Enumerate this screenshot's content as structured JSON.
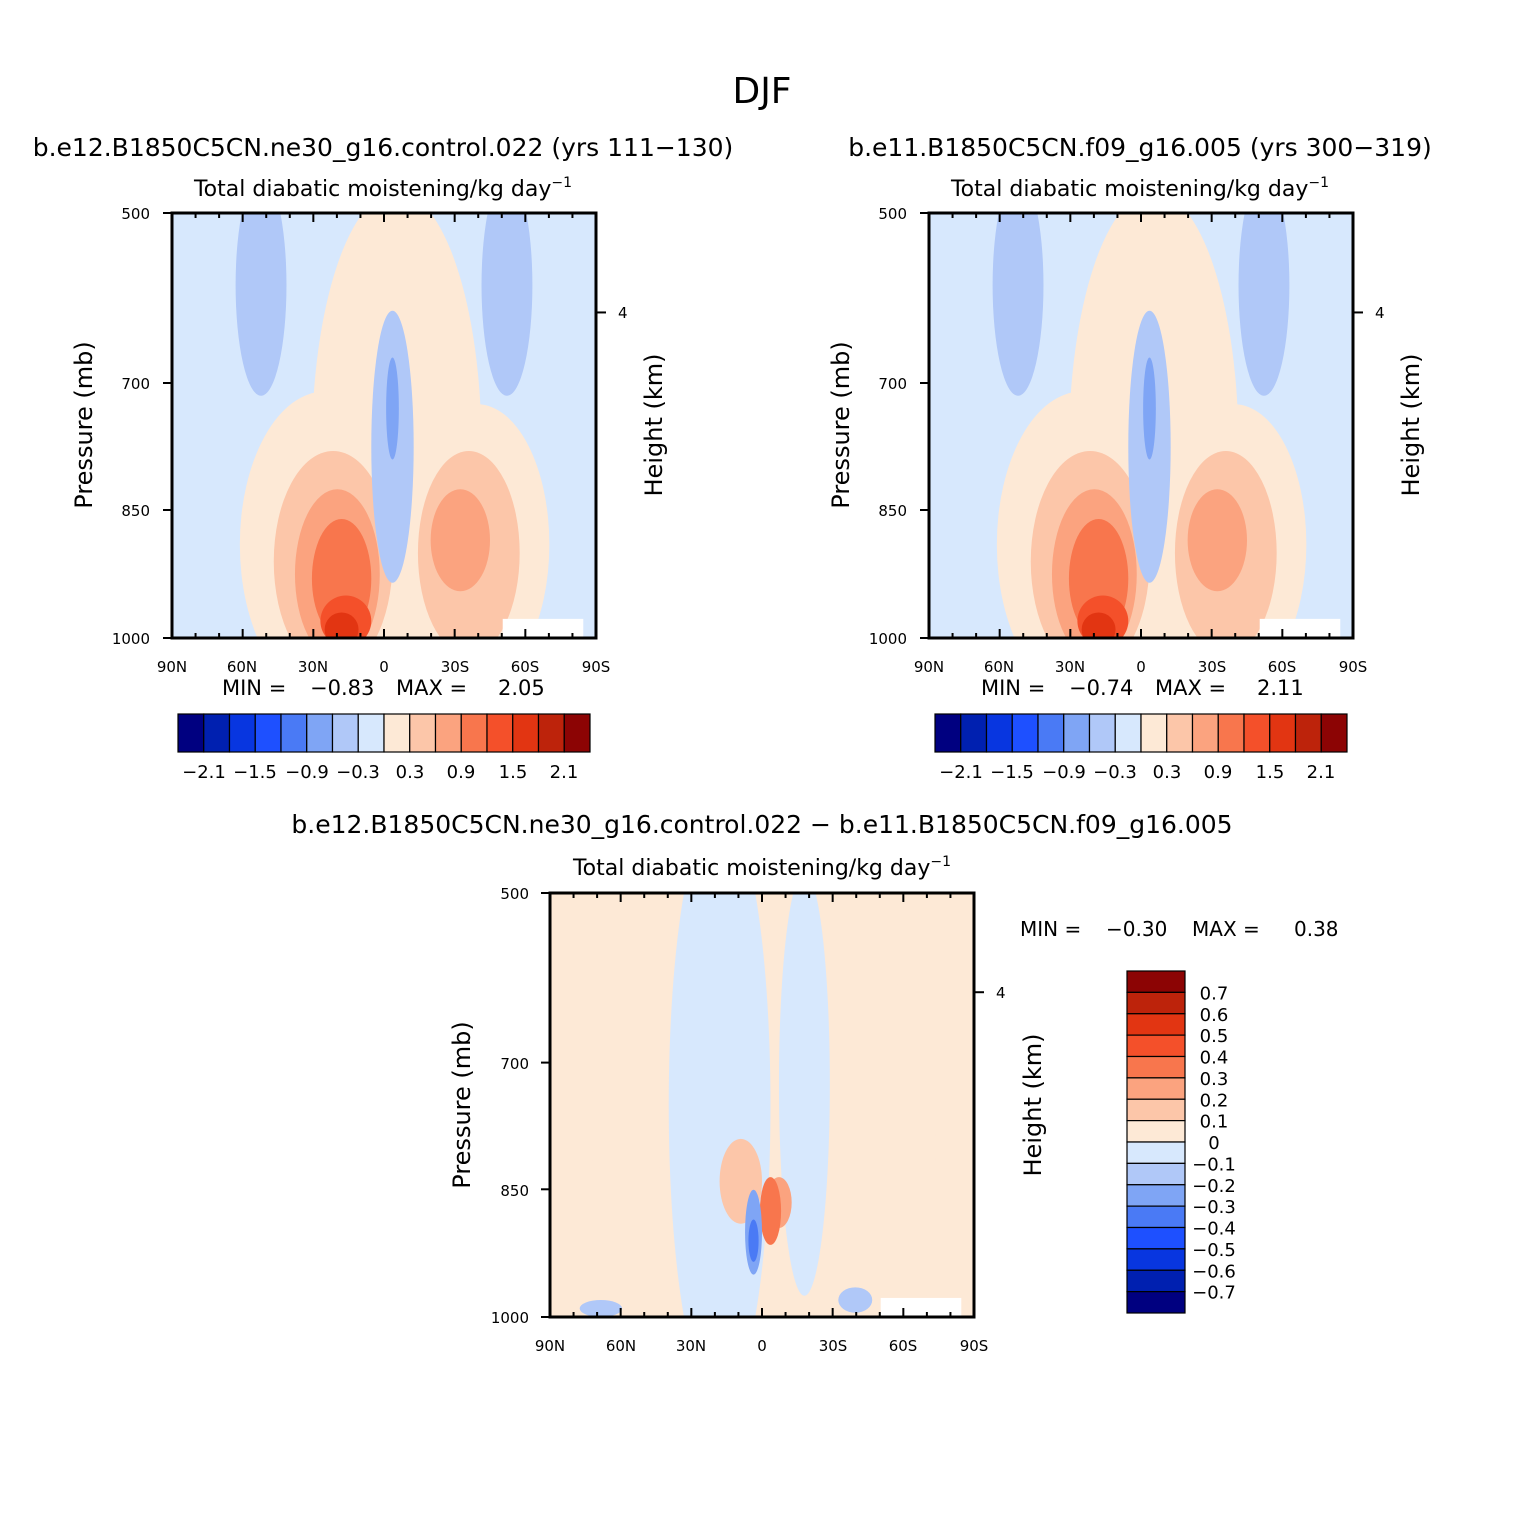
{
  "figure": {
    "title": "DJF"
  },
  "chart_data": [
    {
      "type": "heatmap",
      "title": "b.e12.B1850C5CN.ne30_g16.control.022 (yrs 111−130)",
      "subtitle": "Total diabatic moistening/kg day",
      "subtitle_exp": "−1",
      "ylabel": "Pressure (mb)",
      "ylabel_right": "Height (km)",
      "x_ticks": [
        "90N",
        "60N",
        "30N",
        "0",
        "30S",
        "60S",
        "90S"
      ],
      "y_ticks": [
        "500",
        "700",
        "850",
        "1000"
      ],
      "y_right_ticks": [
        "4"
      ],
      "ylim": [
        1000,
        500
      ],
      "stats": {
        "min_label": "MIN =",
        "min": "−0.83",
        "max_label": "MAX =",
        "max": "2.05"
      },
      "colorbar": {
        "orientation": "horizontal",
        "colors": [
          "#000080",
          "#0020b0",
          "#0836e0",
          "#1e50ff",
          "#4a7af5",
          "#7fa5f5",
          "#b0c8f8",
          "#d7e8fd",
          "#fde9d6",
          "#fcc6a9",
          "#fba37f",
          "#f8764d",
          "#f4502a",
          "#e23512",
          "#bd230b",
          "#8c0404"
        ],
        "labels": [
          "−2.1",
          "−1.5",
          "−0.9",
          "−0.3",
          "0.3",
          "0.9",
          "1.5",
          "2.1"
        ]
      }
    },
    {
      "type": "heatmap",
      "title": "b.e11.B1850C5CN.f09_g16.005 (yrs 300−319)",
      "subtitle": "Total diabatic moistening/kg day",
      "subtitle_exp": "−1",
      "ylabel": "Pressure (mb)",
      "ylabel_right": "Height (km)",
      "x_ticks": [
        "90N",
        "60N",
        "30N",
        "0",
        "30S",
        "60S",
        "90S"
      ],
      "y_ticks": [
        "500",
        "700",
        "850",
        "1000"
      ],
      "y_right_ticks": [
        "4"
      ],
      "ylim": [
        1000,
        500
      ],
      "stats": {
        "min_label": "MIN =",
        "min": "−0.74",
        "max_label": "MAX =",
        "max": "2.11"
      },
      "colorbar": {
        "orientation": "horizontal",
        "colors": [
          "#000080",
          "#0020b0",
          "#0836e0",
          "#1e50ff",
          "#4a7af5",
          "#7fa5f5",
          "#b0c8f8",
          "#d7e8fd",
          "#fde9d6",
          "#fcc6a9",
          "#fba37f",
          "#f8764d",
          "#f4502a",
          "#e23512",
          "#bd230b",
          "#8c0404"
        ],
        "labels": [
          "−2.1",
          "−1.5",
          "−0.9",
          "−0.3",
          "0.3",
          "0.9",
          "1.5",
          "2.1"
        ]
      }
    },
    {
      "type": "heatmap",
      "title": "b.e12.B1850C5CN.ne30_g16.control.022 − b.e11.B1850C5CN.f09_g16.005",
      "subtitle": "Total diabatic moistening/kg day",
      "subtitle_exp": "−1",
      "ylabel": "Pressure (mb)",
      "ylabel_right": "Height (km)",
      "x_ticks": [
        "90N",
        "60N",
        "30N",
        "0",
        "30S",
        "60S",
        "90S"
      ],
      "y_ticks": [
        "500",
        "700",
        "850",
        "1000"
      ],
      "y_right_ticks": [
        "4"
      ],
      "ylim": [
        1000,
        500
      ],
      "stats": {
        "min_label": "MIN =",
        "min": "−0.30",
        "max_label": "MAX =",
        "max": "0.38"
      },
      "colorbar": {
        "orientation": "vertical",
        "colors": [
          "#8c0404",
          "#bd230b",
          "#e23512",
          "#f4502a",
          "#f8764d",
          "#fba37f",
          "#fcc6a9",
          "#fde9d6",
          "#d7e8fd",
          "#b0c8f8",
          "#7fa5f5",
          "#4a7af5",
          "#1e50ff",
          "#0836e0",
          "#0020b0",
          "#000080"
        ],
        "labels": [
          "0.7",
          "0.6",
          "0.5",
          "0.4",
          "0.3",
          "0.2",
          "0.1",
          "0",
          "−0.1",
          "−0.2",
          "−0.3",
          "−0.4",
          "−0.5",
          "−0.6",
          "−0.7"
        ]
      }
    }
  ]
}
